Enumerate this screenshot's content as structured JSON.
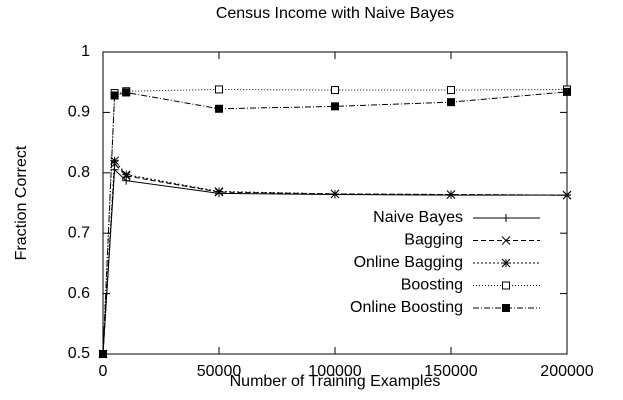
{
  "chart_data": {
    "type": "line",
    "title": "Census Income with Naive Bayes",
    "xlabel": "Number of Training Examples",
    "ylabel": "Fraction Correct",
    "x": [
      0,
      5000,
      10000,
      50000,
      100000,
      150000,
      200000
    ],
    "series": [
      {
        "name": "Naive Bayes",
        "color": "#000000",
        "dash": "none",
        "marker": "plus",
        "values": [
          0.5,
          0.805,
          0.787,
          0.766,
          0.764,
          0.763,
          0.763
        ]
      },
      {
        "name": "Bagging",
        "color": "#000000",
        "dash": "5,3",
        "marker": "cross",
        "values": [
          0.5,
          0.815,
          0.795,
          0.768,
          0.765,
          0.764,
          0.763
        ]
      },
      {
        "name": "Online Bagging",
        "color": "#000000",
        "dash": "2,2",
        "marker": "star",
        "values": [
          0.5,
          0.82,
          0.797,
          0.769,
          0.765,
          0.764,
          0.763
        ]
      },
      {
        "name": "Boosting",
        "color": "#000000",
        "dash": "1,2",
        "marker": "square-open",
        "values": [
          0.5,
          0.932,
          0.935,
          0.938,
          0.937,
          0.937,
          0.938
        ]
      },
      {
        "name": "Online Boosting",
        "color": "#000000",
        "dash": "6,2,1,2",
        "marker": "square-filled",
        "values": [
          0.5,
          0.928,
          0.933,
          0.906,
          0.91,
          0.917,
          0.934
        ]
      }
    ],
    "xlim": [
      0,
      200000
    ],
    "xticks": [
      0,
      50000,
      100000,
      150000,
      200000
    ],
    "ylim": [
      0.5,
      1
    ],
    "yticks": [
      0.5,
      0.6,
      0.7,
      0.8,
      0.9,
      1
    ],
    "legend": "right"
  }
}
